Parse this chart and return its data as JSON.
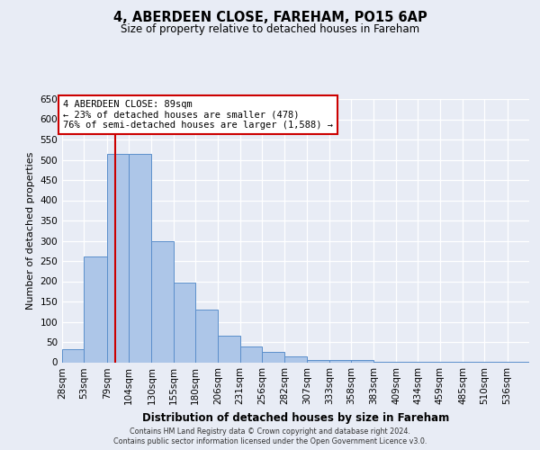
{
  "title": "4, ABERDEEN CLOSE, FAREHAM, PO15 6AP",
  "subtitle": "Size of property relative to detached houses in Fareham",
  "xlabel": "Distribution of detached houses by size in Fareham",
  "ylabel": "Number of detached properties",
  "bin_labels": [
    "28sqm",
    "53sqm",
    "79sqm",
    "104sqm",
    "130sqm",
    "155sqm",
    "180sqm",
    "206sqm",
    "231sqm",
    "256sqm",
    "282sqm",
    "307sqm",
    "333sqm",
    "358sqm",
    "383sqm",
    "409sqm",
    "434sqm",
    "459sqm",
    "485sqm",
    "510sqm",
    "536sqm"
  ],
  "bar_heights": [
    33,
    262,
    515,
    515,
    300,
    197,
    131,
    65,
    40,
    25,
    15,
    5,
    5,
    5,
    2,
    2,
    2,
    1,
    1,
    1,
    2
  ],
  "bar_color": "#adc6e8",
  "bar_edge_color": "#5b8fcb",
  "background_color": "#e8ecf5",
  "grid_color": "#ffffff",
  "red_line_x": 89,
  "bin_edges_sqm": [
    28,
    53,
    79,
    104,
    130,
    155,
    180,
    206,
    231,
    256,
    282,
    307,
    333,
    358,
    383,
    409,
    434,
    459,
    485,
    510,
    536,
    561
  ],
  "annotation_title": "4 ABERDEEN CLOSE: 89sqm",
  "annotation_line1": "← 23% of detached houses are smaller (478)",
  "annotation_line2": "76% of semi-detached houses are larger (1,588) →",
  "annotation_box_color": "#ffffff",
  "annotation_box_edge": "#cc0000",
  "red_line_color": "#cc0000",
  "ylim": [
    0,
    650
  ],
  "yticks": [
    0,
    50,
    100,
    150,
    200,
    250,
    300,
    350,
    400,
    450,
    500,
    550,
    600,
    650
  ],
  "footer_line1": "Contains HM Land Registry data © Crown copyright and database right 2024.",
  "footer_line2": "Contains public sector information licensed under the Open Government Licence v3.0."
}
